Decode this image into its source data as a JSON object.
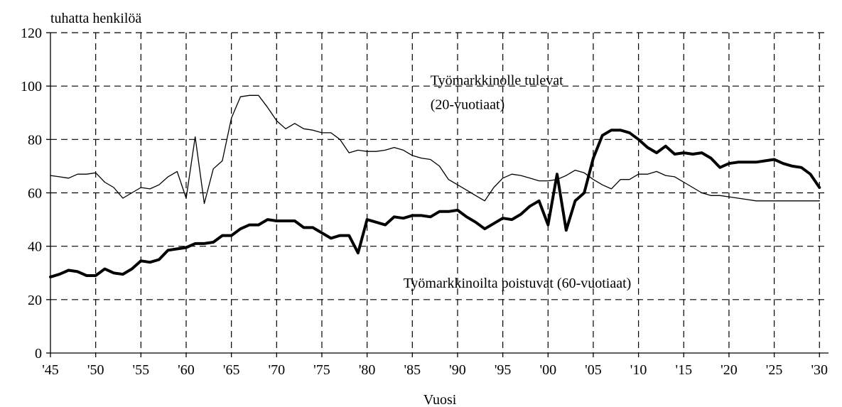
{
  "chart_data": {
    "type": "line",
    "ylabel": "tuhatta henkilöä",
    "xlabel": "Vuosi",
    "xlim": [
      1945,
      2031
    ],
    "ylim": [
      0,
      120
    ],
    "grid": true,
    "legend": "none",
    "x_ticks": [
      {
        "value": 1945,
        "label": "'45"
      },
      {
        "value": 1950,
        "label": "'50"
      },
      {
        "value": 1955,
        "label": "'55"
      },
      {
        "value": 1960,
        "label": "'60"
      },
      {
        "value": 1965,
        "label": "'65"
      },
      {
        "value": 1970,
        "label": "'70"
      },
      {
        "value": 1975,
        "label": "'75"
      },
      {
        "value": 1980,
        "label": "'80"
      },
      {
        "value": 1985,
        "label": "'85"
      },
      {
        "value": 1990,
        "label": "'90"
      },
      {
        "value": 1995,
        "label": "'95"
      },
      {
        "value": 2000,
        "label": "'00"
      },
      {
        "value": 2005,
        "label": "'05"
      },
      {
        "value": 2010,
        "label": "'10"
      },
      {
        "value": 2015,
        "label": "'15"
      },
      {
        "value": 2020,
        "label": "'20"
      },
      {
        "value": 2025,
        "label": "'25"
      },
      {
        "value": 2030,
        "label": "'30"
      }
    ],
    "y_ticks": [
      0,
      20,
      40,
      60,
      80,
      100,
      120
    ],
    "annotations": [
      {
        "lines": [
          "Työmarkkinolle tulevat",
          "(20-vuotiaat)"
        ],
        "x": 1987,
        "y": 100.5
      },
      {
        "lines": [
          "Työmarkkinoilta poistuvat (60-vuotiaat)"
        ],
        "x": 1984,
        "y": 24.5
      }
    ],
    "series": [
      {
        "name": "Työmarkkinolle tulevat (20-vuotiaat)",
        "line_width": 1.3,
        "color": "#000000",
        "x": [
          1945,
          1946,
          1947,
          1948,
          1949,
          1950,
          1951,
          1952,
          1953,
          1954,
          1955,
          1956,
          1957,
          1958,
          1959,
          1960,
          1961,
          1962,
          1963,
          1964,
          1965,
          1966,
          1967,
          1968,
          1969,
          1970,
          1971,
          1972,
          1973,
          1974,
          1975,
          1976,
          1977,
          1978,
          1979,
          1980,
          1981,
          1982,
          1983,
          1984,
          1985,
          1986,
          1987,
          1988,
          1989,
          1990,
          1991,
          1992,
          1993,
          1994,
          1995,
          1996,
          1997,
          1998,
          1999,
          2000,
          2001,
          2002,
          2003,
          2004,
          2005,
          2006,
          2007,
          2008,
          2009,
          2010,
          2011,
          2012,
          2013,
          2014,
          2015,
          2016,
          2017,
          2018,
          2019,
          2020,
          2021,
          2022,
          2023,
          2024,
          2025,
          2026,
          2027,
          2028,
          2029,
          2030
        ],
        "y": [
          66.5,
          66,
          65.5,
          67,
          67,
          67.5,
          64,
          62,
          58,
          60,
          62,
          61.5,
          63,
          66,
          68,
          58,
          81,
          56,
          69,
          72,
          88,
          96,
          96.5,
          96.5,
          92,
          87,
          84,
          86,
          84,
          83.5,
          82.5,
          82.5,
          80,
          75,
          76,
          75.5,
          75.5,
          76,
          77,
          76,
          74,
          73,
          72.5,
          70,
          65,
          63,
          61,
          59,
          57,
          62,
          65.5,
          67,
          66.5,
          65.5,
          64.5,
          64.5,
          65,
          66.5,
          68.5,
          67.5,
          65,
          63,
          61.5,
          65,
          65,
          67,
          67,
          68,
          66.5,
          66,
          64,
          62,
          60,
          59,
          59,
          58.5,
          58,
          57.5,
          57,
          57,
          57,
          57,
          57,
          57,
          57,
          57
        ]
      },
      {
        "name": "Työmarkkinoilta poistuvat (60-vuotiaat)",
        "line_width": 4,
        "color": "#000000",
        "x": [
          1945,
          1946,
          1947,
          1948,
          1949,
          1950,
          1951,
          1952,
          1953,
          1954,
          1955,
          1956,
          1957,
          1958,
          1959,
          1960,
          1961,
          1962,
          1963,
          1964,
          1965,
          1966,
          1967,
          1968,
          1969,
          1970,
          1971,
          1972,
          1973,
          1974,
          1975,
          1976,
          1977,
          1978,
          1979,
          1980,
          1981,
          1982,
          1983,
          1984,
          1985,
          1986,
          1987,
          1988,
          1989,
          1990,
          1991,
          1992,
          1993,
          1994,
          1995,
          1996,
          1997,
          1998,
          1999,
          2000,
          2001,
          2002,
          2003,
          2004,
          2005,
          2006,
          2007,
          2008,
          2009,
          2010,
          2011,
          2012,
          2013,
          2014,
          2015,
          2016,
          2017,
          2018,
          2019,
          2020,
          2021,
          2022,
          2023,
          2024,
          2025,
          2026,
          2027,
          2028,
          2029,
          2030
        ],
        "y": [
          28.5,
          29.5,
          31,
          30.5,
          29,
          29,
          31.5,
          30,
          29.5,
          31.5,
          34.5,
          34,
          35,
          38.5,
          39,
          39.5,
          41,
          41,
          41.5,
          44,
          44,
          46.5,
          48,
          48,
          50,
          49.5,
          49.5,
          49.5,
          47,
          47,
          45,
          43,
          44,
          44,
          37.5,
          50,
          49,
          48,
          51,
          50.5,
          51.5,
          51.5,
          51,
          53,
          53,
          53.5,
          51,
          49,
          46.5,
          48.5,
          50.5,
          50,
          52,
          55,
          57,
          48,
          67,
          46,
          57,
          60,
          73,
          81.5,
          83.5,
          83.5,
          82.5,
          80,
          77,
          75,
          77.5,
          74.5,
          75,
          74.5,
          75,
          73,
          69.5,
          71,
          71.5,
          71.5,
          71.5,
          72,
          72.5,
          71,
          70,
          69.5,
          67,
          62
        ]
      }
    ]
  }
}
